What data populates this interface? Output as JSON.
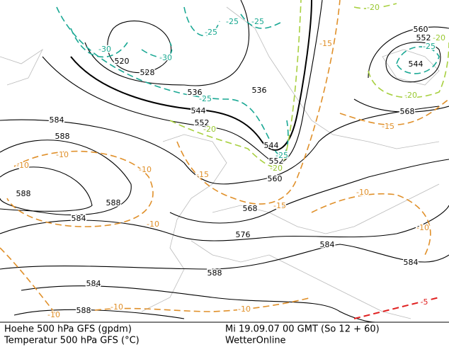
{
  "footer": {
    "line1": "Hoehe 500 hPa GFS (gpdm)",
    "line2": "Temperatur 500 hPa GFS (°C)",
    "date": "Mi 19.09.07 00 GMT (So 12 + 60)",
    "source": "WetterOnline"
  },
  "contour_labels": [
    "520",
    "528",
    "536",
    "544",
    "552",
    "584",
    "588",
    "588",
    "588",
    "584",
    "536",
    "544",
    "552",
    "560",
    "568",
    "576",
    "584",
    "588",
    "584",
    "588",
    "584",
    "560",
    "552",
    "544",
    "568",
    "-30",
    "-30",
    "-25",
    "-25",
    "-25",
    "-25",
    "-25",
    "-25",
    "-20",
    "-20",
    "-20",
    "-20",
    "-20",
    "-15",
    "-15",
    "-15",
    "-15",
    "-10",
    "-10",
    "-10",
    "-10",
    "-10",
    "-10",
    "-10",
    "-10",
    "-10",
    "-5"
  ]
}
